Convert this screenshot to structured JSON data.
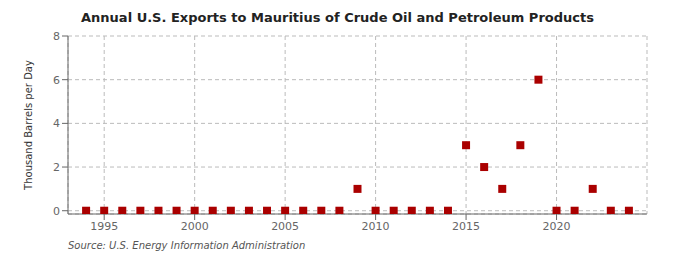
{
  "chart_data": {
    "type": "scatter",
    "title": "Annual U.S. Exports to Mauritius of Crude Oil and Petroleum Products",
    "ylabel": "Thousand Barrels per Day",
    "annotations": [
      "Source: U.S. Energy Information Administration"
    ],
    "x": [
      1994,
      1995,
      1996,
      1997,
      1998,
      1999,
      2000,
      2001,
      2002,
      2003,
      2004,
      2005,
      2006,
      2007,
      2008,
      2009,
      2010,
      2011,
      2012,
      2013,
      2014,
      2015,
      2016,
      2017,
      2018,
      2019,
      2020,
      2021,
      2022,
      2023,
      2024
    ],
    "values": [
      0,
      0,
      0,
      0,
      0,
      0,
      0,
      0,
      0,
      0,
      0,
      0,
      0,
      0,
      0,
      1,
      0,
      0,
      0,
      0,
      0,
      3,
      2,
      1,
      3,
      6,
      0,
      0,
      1,
      0,
      0
    ],
    "color": "#aa0000",
    "marker": "square",
    "xlim": [
      1993,
      2025
    ],
    "ylim": [
      -0.15,
      8
    ],
    "xticks": [
      1995,
      2000,
      2005,
      2010,
      2015,
      2020
    ],
    "yticks": [
      0,
      2,
      4,
      6,
      8
    ],
    "grid": true
  }
}
